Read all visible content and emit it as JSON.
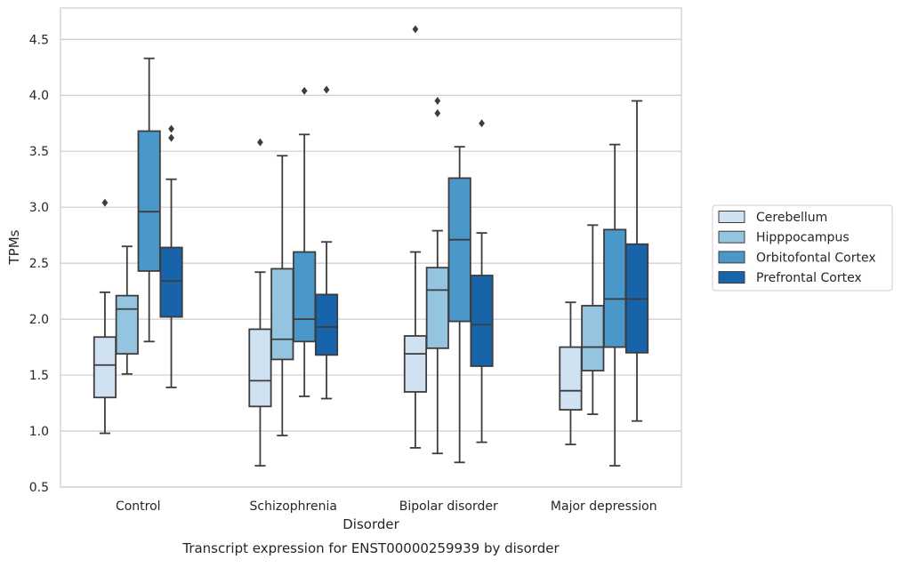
{
  "chart_data": {
    "type": "box",
    "caption": "Transcript expression for ENST00000259939 by disorder",
    "xlabel": "Disorder",
    "ylabel": "TPMs",
    "ylim": [
      0.5,
      4.78
    ],
    "yticks": [
      0.5,
      1.0,
      1.5,
      2.0,
      2.5,
      3.0,
      3.5,
      4.0,
      4.5
    ],
    "ytick_labels": [
      "0.5",
      "1.0",
      "1.5",
      "2.0",
      "2.5",
      "3.0",
      "3.5",
      "4.0",
      "4.5"
    ],
    "grid": "horizontal",
    "legend_position": "right",
    "categories": [
      "Control",
      "Schizophrenia",
      "Bipolar disorder",
      "Major depression"
    ],
    "series": [
      {
        "name": "Cerebellum",
        "color": "#d0e1f2",
        "boxes": [
          {
            "whisker_low": 0.98,
            "q1": 1.3,
            "median": 1.59,
            "q3": 1.84,
            "whisker_high": 2.24,
            "outliers": [
              3.04
            ]
          },
          {
            "whisker_low": 0.69,
            "q1": 1.22,
            "median": 1.45,
            "q3": 1.91,
            "whisker_high": 2.42,
            "outliers": [
              3.58
            ]
          },
          {
            "whisker_low": 0.85,
            "q1": 1.35,
            "median": 1.69,
            "q3": 1.85,
            "whisker_high": 2.6,
            "outliers": [
              4.59
            ]
          },
          {
            "whisker_low": 0.88,
            "q1": 1.19,
            "median": 1.36,
            "q3": 1.75,
            "whisker_high": 2.15,
            "outliers": []
          }
        ]
      },
      {
        "name": "Hipppocampus",
        "color": "#94c4df",
        "boxes": [
          {
            "whisker_low": 1.51,
            "q1": 1.69,
            "median": 2.09,
            "q3": 2.21,
            "whisker_high": 2.65,
            "outliers": []
          },
          {
            "whisker_low": 0.96,
            "q1": 1.64,
            "median": 1.82,
            "q3": 2.45,
            "whisker_high": 3.46,
            "outliers": []
          },
          {
            "whisker_low": 0.8,
            "q1": 1.74,
            "median": 2.26,
            "q3": 2.46,
            "whisker_high": 2.79,
            "outliers": [
              3.95,
              3.84
            ]
          },
          {
            "whisker_low": 1.15,
            "q1": 1.54,
            "median": 1.75,
            "q3": 2.12,
            "whisker_high": 2.84,
            "outliers": []
          }
        ]
      },
      {
        "name": "Orbitofontal Cortex",
        "color": "#4a98c9",
        "boxes": [
          {
            "whisker_low": 1.8,
            "q1": 2.43,
            "median": 2.96,
            "q3": 3.68,
            "whisker_high": 4.33,
            "outliers": []
          },
          {
            "whisker_low": 1.31,
            "q1": 1.8,
            "median": 2.0,
            "q3": 2.6,
            "whisker_high": 3.65,
            "outliers": [
              4.04
            ]
          },
          {
            "whisker_low": 0.72,
            "q1": 1.98,
            "median": 2.71,
            "q3": 3.26,
            "whisker_high": 3.54,
            "outliers": []
          },
          {
            "whisker_low": 0.69,
            "q1": 1.75,
            "median": 2.18,
            "q3": 2.8,
            "whisker_high": 3.56,
            "outliers": []
          }
        ]
      },
      {
        "name": "Prefrontal Cortex",
        "color": "#1764ab",
        "boxes": [
          {
            "whisker_low": 1.39,
            "q1": 2.02,
            "median": 2.34,
            "q3": 2.64,
            "whisker_high": 3.25,
            "outliers": [
              3.7,
              3.62
            ]
          },
          {
            "whisker_low": 1.29,
            "q1": 1.68,
            "median": 1.93,
            "q3": 2.22,
            "whisker_high": 2.69,
            "outliers": [
              4.05
            ]
          },
          {
            "whisker_low": 0.9,
            "q1": 1.58,
            "median": 1.95,
            "q3": 2.39,
            "whisker_high": 2.77,
            "outliers": [
              3.75
            ]
          },
          {
            "whisker_low": 1.09,
            "q1": 1.7,
            "median": 2.18,
            "q3": 2.67,
            "whisker_high": 3.95,
            "outliers": []
          }
        ]
      }
    ]
  }
}
